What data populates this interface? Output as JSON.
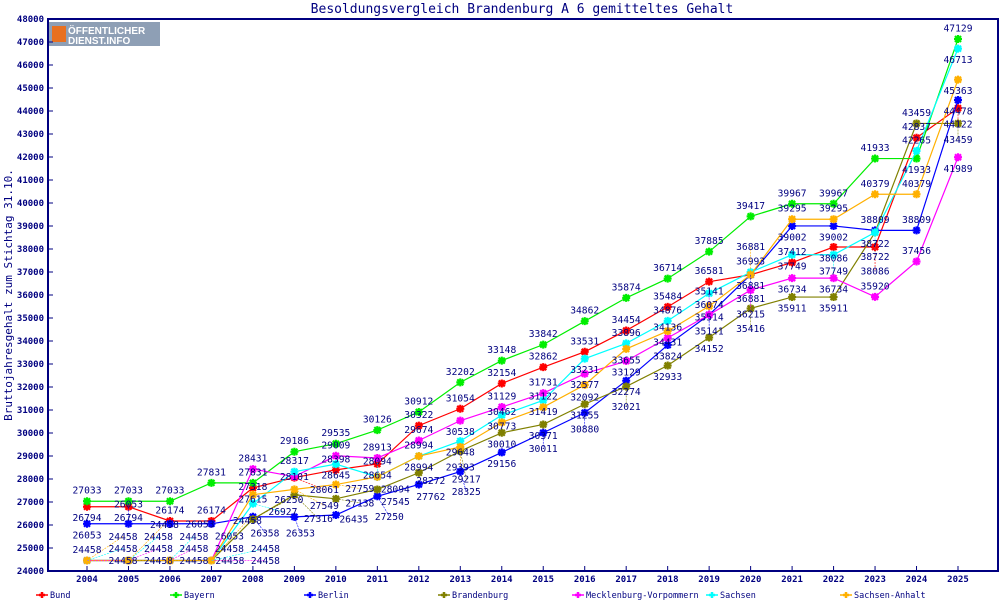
{
  "chart_data": {
    "type": "line",
    "title": "Besoldungsvergleich Brandenburg A 6 gemitteltes Gehalt",
    "ylabel": "Bruttojahresgehalt zum Stichtag 31.10.",
    "xlabel": "",
    "ylim": [
      24000,
      48000
    ],
    "yticks": [
      24000,
      25000,
      26000,
      27000,
      28000,
      29000,
      30000,
      31000,
      32000,
      33000,
      34000,
      35000,
      36000,
      37000,
      38000,
      39000,
      40000,
      41000,
      42000,
      43000,
      44000,
      45000,
      46000,
      47000,
      48000
    ],
    "x": [
      2004,
      2005,
      2006,
      2007,
      2008,
      2009,
      2010,
      2011,
      2012,
      2013,
      2014,
      2015,
      2016,
      2017,
      2018,
      2019,
      2020,
      2021,
      2022,
      2023,
      2024,
      2025
    ],
    "legend_position": "bottom",
    "grid": false,
    "series": [
      {
        "name": "Bund",
        "color": "#ff0000",
        "values": [
          26794,
          26794,
          26174,
          26174,
          27615,
          28061,
          28398,
          28654,
          30322,
          31054,
          32154,
          32862,
          33531,
          34454,
          35484,
          36581,
          36881,
          37412,
          38086,
          38086,
          42837,
          44122
        ]
      },
      {
        "name": "Bayern",
        "color": "#00ee00",
        "values": [
          27033,
          27033,
          27033,
          27831,
          27831,
          29186,
          29535,
          30126,
          30912,
          32202,
          33148,
          33842,
          34862,
          35874,
          36714,
          37885,
          39417,
          39967,
          39967,
          41933,
          41933,
          47129
        ]
      },
      {
        "name": "Berlin",
        "color": "#0000ff",
        "values": [
          26053,
          26053,
          26053,
          26053,
          26358,
          26353,
          26435,
          27250,
          27762,
          28325,
          29156,
          30011,
          30880,
          32274,
          33824,
          35141,
          36881,
          39002,
          39002,
          38809,
          38809,
          44478
        ]
      },
      {
        "name": "Brandenburg",
        "color": "#808000",
        "values": [
          24458,
          24458,
          24458,
          24458,
          26250,
          27316,
          27138,
          27545,
          28272,
          29217,
          30010,
          30371,
          31255,
          32021,
          32933,
          34152,
          35416,
          35911,
          35911,
          38722,
          43459,
          43459
        ]
      },
      {
        "name": "Mecklenburg-Vorpommern",
        "color": "#ff00ff",
        "values": [
          24458,
          24458,
          24458,
          24458,
          28431,
          28101,
          29009,
          28913,
          29674,
          30538,
          31129,
          31731,
          32577,
          33129,
          34136,
          35141,
          36215,
          36734,
          36734,
          35920,
          37456,
          41989
        ]
      },
      {
        "name": "Sachsen",
        "color": "#00ffff",
        "values": [
          24458,
          24458,
          24458,
          24458,
          26927,
          28317,
          28645,
          28094,
          28994,
          29648,
          30773,
          31419,
          33231,
          33896,
          34876,
          36074,
          36993,
          37749,
          37749,
          38722,
          42265,
          46713
        ]
      },
      {
        "name": "Sachsen-Anhalt",
        "color": "#ffb000",
        "values": [
          24458,
          24458,
          24458,
          24458,
          27318,
          27549,
          27759,
          28094,
          28994,
          29393,
          30462,
          31122,
          32092,
          33655,
          34431,
          35514,
          36881,
          39295,
          39295,
          40379,
          40379,
          45363
        ]
      }
    ]
  },
  "logo": {
    "line1": "ÖFFENTLICHER",
    "line2": "DIENST.INFO"
  },
  "colors": {
    "axis": "#000080",
    "text": "#000080"
  }
}
